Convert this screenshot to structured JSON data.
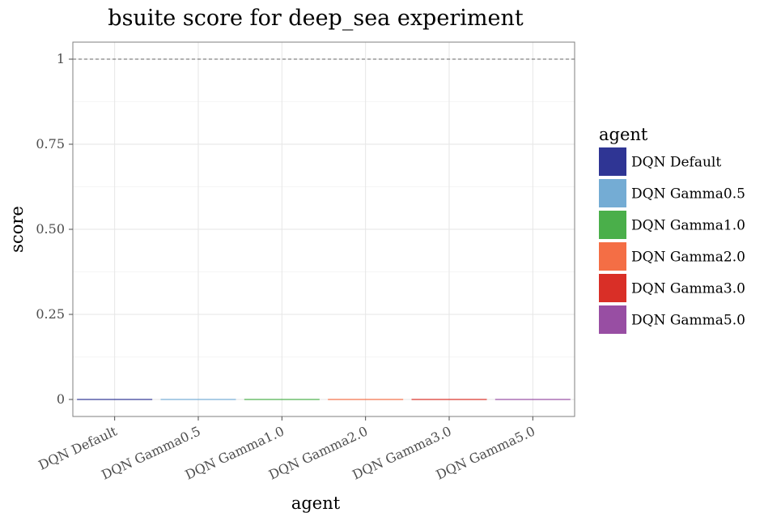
{
  "chart_data": {
    "type": "bar",
    "title": "bsuite score for deep_sea experiment",
    "xlabel": "agent",
    "ylabel": "score",
    "categories": [
      "DQN Default",
      "DQN Gamma0.5",
      "DQN Gamma1.0",
      "DQN Gamma2.0",
      "DQN Gamma3.0",
      "DQN Gamma5.0"
    ],
    "values": [
      0,
      0,
      0,
      0,
      0,
      0
    ],
    "colors": [
      "#2f3594",
      "#74acd4",
      "#4aaf4a",
      "#f46e45",
      "#d92f27",
      "#984ea3"
    ],
    "ylim": [
      -0.05,
      1.05
    ],
    "yticks": [
      0,
      0.25,
      0.5,
      0.75,
      1
    ],
    "ytick_labels": [
      "0",
      "0.25",
      "0.50",
      "0.75",
      "1"
    ],
    "reference_line": 1,
    "grid": true,
    "legend": {
      "title": "agent",
      "position": "right",
      "entries": [
        "DQN Default",
        "DQN Gamma0.5",
        "DQN Gamma1.0",
        "DQN Gamma2.0",
        "DQN Gamma3.0",
        "DQN Gamma5.0"
      ]
    }
  }
}
